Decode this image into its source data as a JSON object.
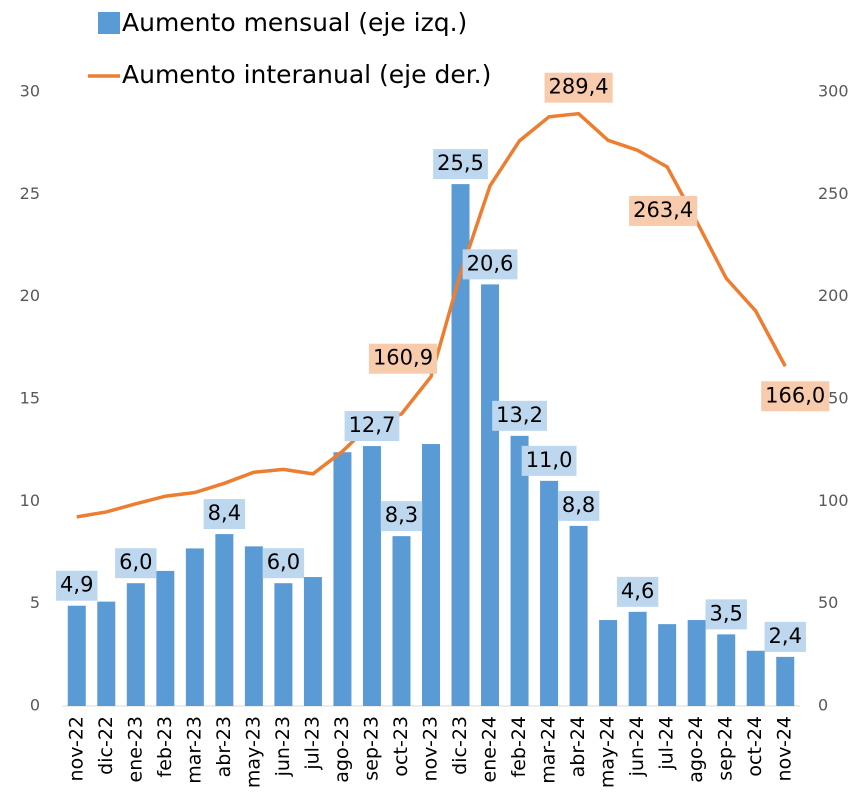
{
  "chart_data": {
    "type": "bar-line",
    "categories": [
      "nov-22",
      "dic-22",
      "ene-23",
      "feb-23",
      "mar-23",
      "abr-23",
      "may-23",
      "jun-23",
      "jul-23",
      "ago-23",
      "sep-23",
      "oct-23",
      "nov-23",
      "dic-23",
      "ene-24",
      "feb-24",
      "mar-24",
      "abr-24",
      "may-24",
      "jun-24",
      "jul-24",
      "ago-24",
      "sep-24",
      "oct-24",
      "nov-24"
    ],
    "series": [
      {
        "name": "Aumento mensual (eje izq.)",
        "type": "bar",
        "color": "#5b9bd5",
        "values": [
          4.9,
          5.1,
          6.0,
          6.6,
          7.7,
          8.4,
          7.8,
          6.0,
          6.3,
          12.4,
          12.7,
          8.3,
          12.8,
          25.5,
          20.6,
          13.2,
          11.0,
          8.8,
          4.2,
          4.6,
          4.0,
          4.2,
          3.5,
          2.7,
          2.4
        ],
        "value_labels": [
          "4,9",
          null,
          "6,0",
          null,
          null,
          "8,4",
          null,
          "6,0",
          null,
          null,
          "12,7",
          "8,3",
          null,
          "25,5",
          "20,6",
          "13,2",
          "11,0",
          "8,8",
          null,
          "4,6",
          null,
          null,
          "3,5",
          null,
          "2,4"
        ]
      },
      {
        "name": "Aumento interanual (eje der.)",
        "type": "line",
        "color": "#ed7d31",
        "axis": "y2",
        "values": [
          92.4,
          94.8,
          98.8,
          102.5,
          104.3,
          108.8,
          114.2,
          115.6,
          113.4,
          124.4,
          138.3,
          142.7,
          160.9,
          211.4,
          254.2,
          276.2,
          287.9,
          289.4,
          276.4,
          271.5,
          263.4,
          236.7,
          209.0,
          193.0,
          166.0
        ],
        "value_labels": [
          null,
          null,
          null,
          null,
          null,
          null,
          null,
          null,
          null,
          null,
          null,
          null,
          "160,9",
          null,
          null,
          null,
          null,
          "289,4",
          null,
          null,
          "263,4",
          null,
          null,
          null,
          "166,0"
        ]
      }
    ],
    "ylim": [
      0,
      30
    ],
    "yticks": [
      0,
      5,
      10,
      15,
      20,
      25,
      30
    ],
    "y2lim": [
      0,
      300
    ],
    "y2ticks": [
      0,
      50,
      100,
      150,
      200,
      250,
      300
    ],
    "grid": false
  }
}
